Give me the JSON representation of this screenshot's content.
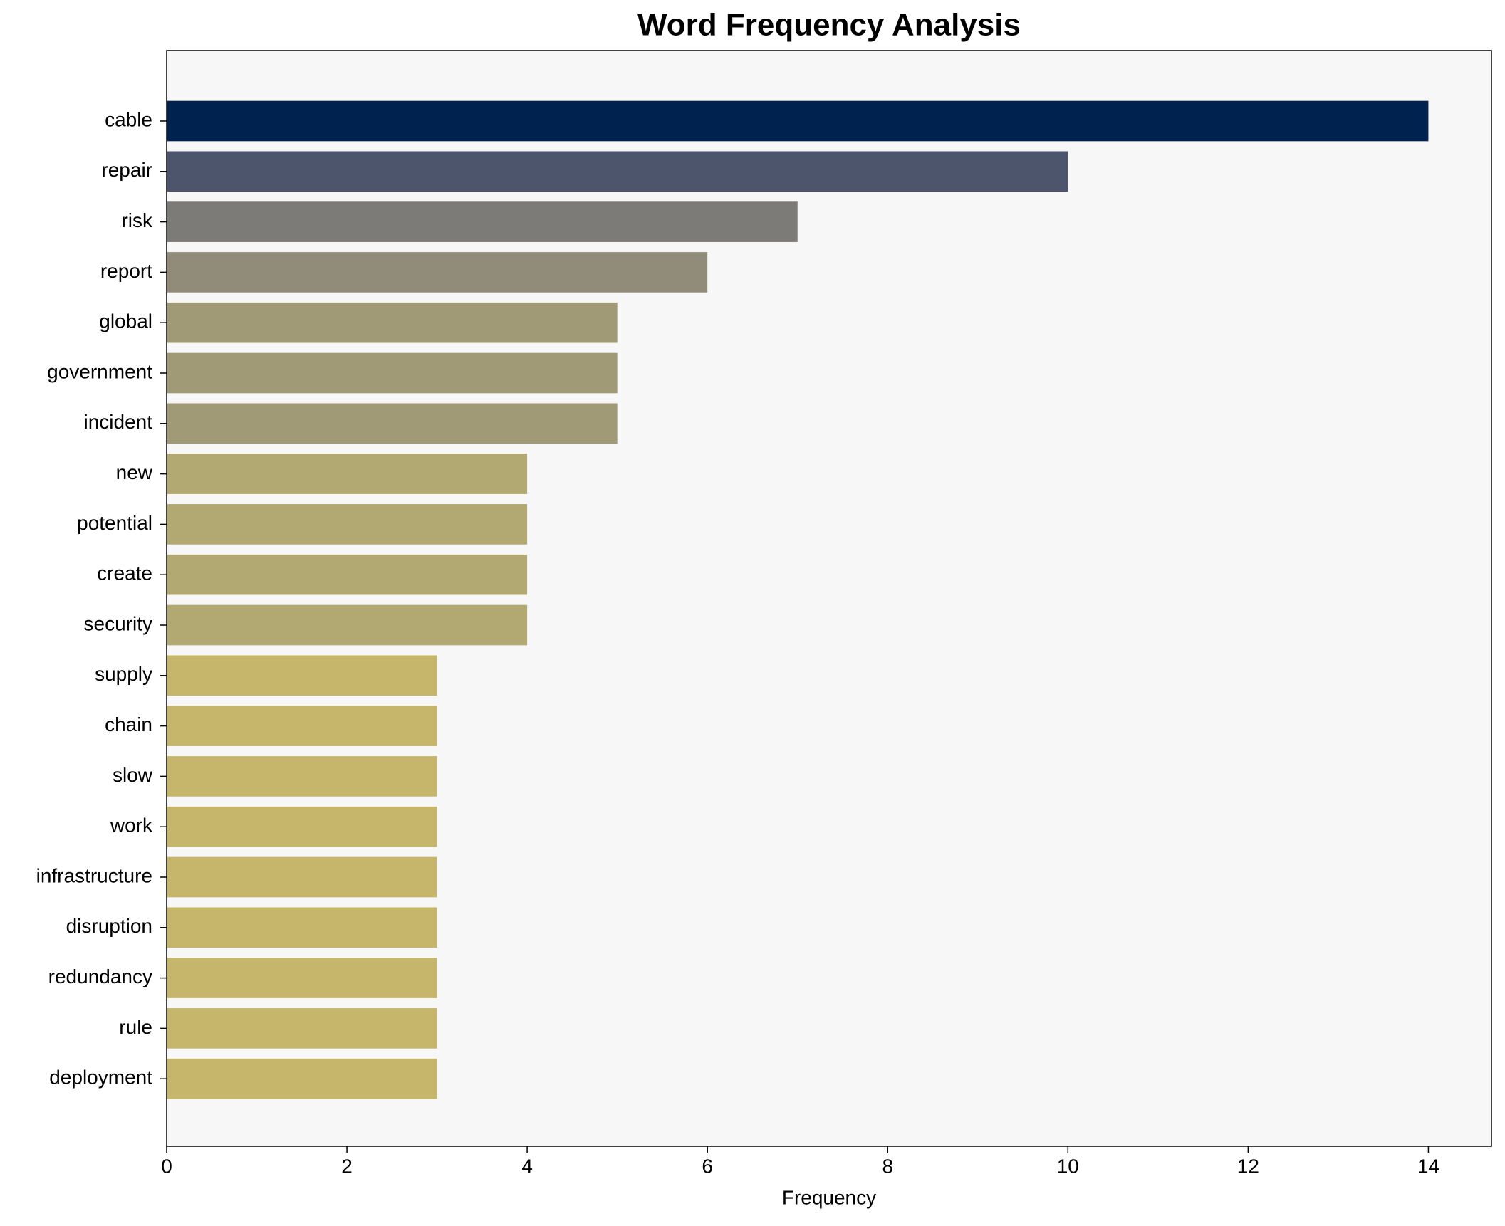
{
  "chart_data": {
    "type": "bar",
    "orientation": "horizontal",
    "title": "Word Frequency Analysis",
    "x_label": "Frequency",
    "categories": [
      "cable",
      "repair",
      "risk",
      "report",
      "global",
      "government",
      "incident",
      "new",
      "potential",
      "create",
      "security",
      "supply",
      "chain",
      "slow",
      "work",
      "infrastructure",
      "disruption",
      "redundancy",
      "rule",
      "deployment"
    ],
    "values": [
      14,
      10,
      7,
      6,
      5,
      5,
      5,
      4,
      4,
      4,
      4,
      3,
      3,
      3,
      3,
      3,
      3,
      3,
      3,
      3
    ],
    "colors": [
      "#00224e",
      "#4c556c",
      "#7c7b78",
      "#918b79",
      "#a19a76",
      "#a19a76",
      "#a19a76",
      "#b2a872",
      "#b2a872",
      "#b2a872",
      "#b2a872",
      "#c5b66b",
      "#c5b66b",
      "#c5b66b",
      "#c5b66b",
      "#c5b66b",
      "#c5b66b",
      "#c5b66b",
      "#c5b66b",
      "#c5b66b"
    ],
    "xlim": [
      0,
      14.7
    ],
    "xticks": [
      0,
      2,
      4,
      6,
      8,
      10,
      12,
      14
    ],
    "grid": false
  }
}
